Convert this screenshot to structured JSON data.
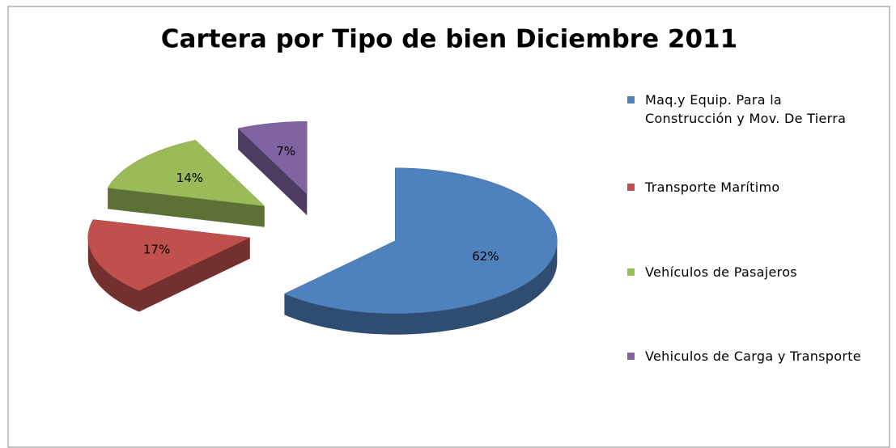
{
  "chart_data": {
    "type": "pie",
    "title": "Cartera por Tipo de bien Diciembre 2011",
    "categories": [
      "Maq.y Equip. Para la Construcción y Mov. De Tierra",
      "Transporte Marítimo",
      "Vehículos de Pasajeros",
      "Vehiculos de Carga y Transporte"
    ],
    "values": [
      62,
      17,
      14,
      7
    ],
    "value_labels": [
      "62%",
      "17%",
      "14%",
      "7%"
    ],
    "colors": [
      "#4f81bd",
      "#c0504d",
      "#9bbb59",
      "#8064a2"
    ],
    "legend": "right"
  }
}
